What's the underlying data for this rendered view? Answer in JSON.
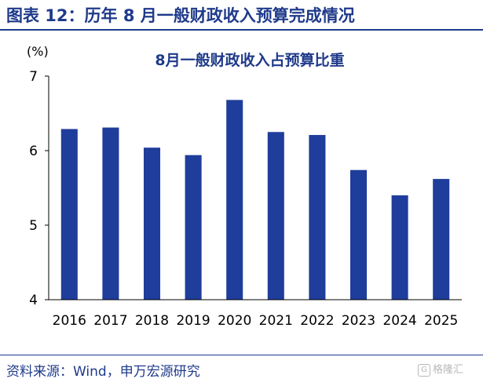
{
  "figure_title": "图表 12：历年 8 月一般财政收入预算完成情况",
  "source": "资料来源：Wind，申万宏源研究",
  "watermark": "格隆汇",
  "colors": {
    "bar": "#1f3d9b",
    "title": "#1f3a8a",
    "axis": "#000000"
  },
  "chart_data": {
    "type": "bar",
    "title": "8月一般财政收入占预算比重",
    "unit": "(%)",
    "categories": [
      "2016",
      "2017",
      "2018",
      "2019",
      "2020",
      "2021",
      "2022",
      "2023",
      "2024",
      "2025"
    ],
    "values": [
      6.29,
      6.31,
      6.04,
      5.94,
      6.68,
      6.25,
      6.21,
      5.74,
      5.4,
      5.62
    ],
    "ylim": [
      4,
      7
    ],
    "yticks": [
      4,
      5,
      6,
      7
    ],
    "grid": false,
    "legend": "none"
  }
}
